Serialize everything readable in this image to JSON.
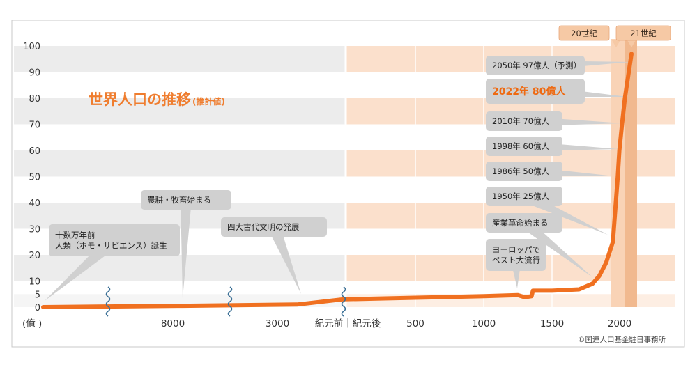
{
  "chart_data": {
    "type": "line",
    "title": "世界人口の推移",
    "subtitle": "(推計値)",
    "unit_label": "(億 )",
    "ylim": [
      0,
      100
    ],
    "yticks": [
      0,
      5,
      10,
      20,
      30,
      40,
      50,
      60,
      70,
      80,
      90,
      100
    ],
    "x_tick_labels": [
      "8000",
      "3000",
      "紀元前｜紀元後",
      "500",
      "1000",
      "1500",
      "2000"
    ],
    "grid": true,
    "series": [
      {
        "values": [
          {
            "x": "-100000",
            "y": 0.0
          },
          {
            "x": "-8000",
            "y": 0.5
          },
          {
            "x": "-3000",
            "y": 1.0
          },
          {
            "x": "1",
            "y": 3.0
          },
          {
            "x": "500",
            "y": 3.6
          },
          {
            "x": "1000",
            "y": 4.2
          },
          {
            "x": "1250",
            "y": 4.6
          },
          {
            "x": "1300",
            "y": 3.8
          },
          {
            "x": "1350",
            "y": 4.2
          },
          {
            "x": "1360",
            "y": 6.3
          },
          {
            "x": "1500",
            "y": 6.3
          },
          {
            "x": "1700",
            "y": 6.8
          },
          {
            "x": "1800",
            "y": 9.0
          },
          {
            "x": "1850",
            "y": 12.0
          },
          {
            "x": "1900",
            "y": 17.0
          },
          {
            "x": "1950",
            "y": 25.0
          },
          {
            "x": "1986",
            "y": 50.0
          },
          {
            "x": "1998",
            "y": 60.0
          },
          {
            "x": "2010",
            "y": 70.0
          },
          {
            "x": "2022",
            "y": 80.0
          },
          {
            "x": "2050",
            "y": 97.0
          }
        ]
      }
    ],
    "annotations": [
      {
        "id": "homo",
        "lines": [
          "十数万年前",
          "人類（ホモ・サピエンス）誕生"
        ]
      },
      {
        "id": "agri",
        "lines": [
          "農耕・牧畜始まる"
        ]
      },
      {
        "id": "civ",
        "lines": [
          "四大古代文明の発展"
        ]
      },
      {
        "id": "plague",
        "lines": [
          "ヨーロッパで",
          "ペスト大流行"
        ]
      },
      {
        "id": "ind",
        "lines": [
          "産業革命始まる"
        ]
      },
      {
        "id": "p1950",
        "lines": [
          "1950年 25億人"
        ]
      },
      {
        "id": "p1986",
        "lines": [
          "1986年 50億人"
        ]
      },
      {
        "id": "p1998",
        "lines": [
          "1998年 60億人"
        ]
      },
      {
        "id": "p2010",
        "lines": [
          "2010年 70億人"
        ]
      },
      {
        "id": "p2022",
        "lines": [
          "2022年 80億人"
        ],
        "highlight": true
      },
      {
        "id": "p2050",
        "lines": [
          "2050年 97億人（予測）"
        ]
      }
    ],
    "centuries": [
      "20世紀",
      "21世紀"
    ],
    "colors": {
      "line": "#f07020",
      "callout": "#d0d0d0",
      "bc_band": "#ececec",
      "ad_band": "#fbe0cc",
      "century_20": "#f9d3b6",
      "century_21": "#f1b98f",
      "label_box": "#f6c9a5"
    },
    "copyright": "©国連人口基金駐日事務所"
  }
}
